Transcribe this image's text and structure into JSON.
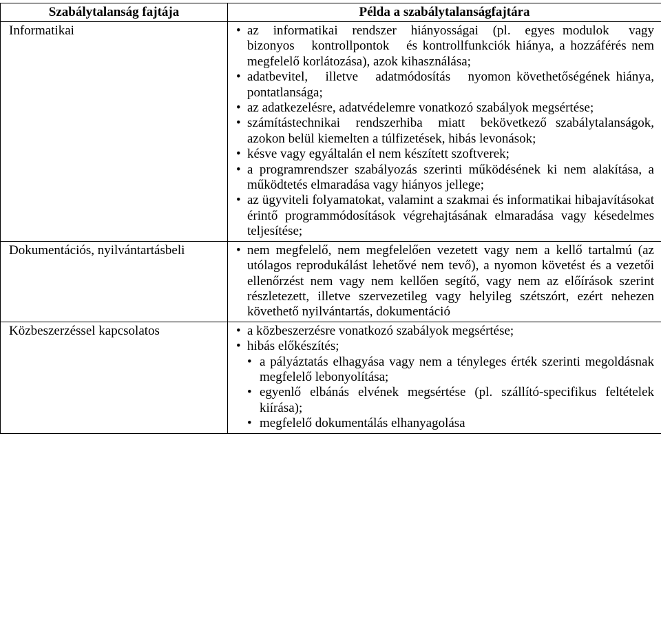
{
  "header": {
    "col1": "Szabálytalanság fajtája",
    "col2": "Példa a szabálytalanságfajtára"
  },
  "rows": [
    {
      "label": "Informatikai",
      "items": [
        "az informatikai rendszer hiányosságai (pl. egyes modulok vagy bizonyos kontrollpontok és kontrollfunkciók hiánya, a hozzáférés nem megfelelő korlátozása), azok kihasználása;",
        "adatbevitel, illetve adatmódosítás nyomon követhetőségének hiánya, pontatlansága;",
        "az adatkezelésre, adatvédelemre vonatkozó szabályok megsértése;",
        "számítástechnikai rendszerhiba miatt bekövetkező szabálytalanságok, azokon belül kiemelten a túlfizetések, hibás levonások;",
        "késve vagy egyáltalán el nem készített szoftverek;",
        "a programrendszer szabályozás szerinti működésének ki nem alakítása, a működtetés elmaradása vagy hiányos jellege;",
        "az ügyviteli folyamatokat, valamint a szakmai és informatikai hibajavításokat érintő programmódosítások végrehajtásának elmaradása vagy késedelmes teljesítése;"
      ]
    },
    {
      "label": "Dokumentációs, nyilvántartásbeli",
      "items": [
        "nem megfelelő, nem megfelelően vezetett vagy nem a kellő tartalmú (az utólagos reprodukálást lehetővé nem tevő), a nyomon követést és a vezetői ellenőrzést nem vagy nem kellően segítő, vagy nem az előírások szerint részletezett, illetve szervezetileg vagy helyileg szétszórt, ezért nehezen követhető nyilvántartás, dokumentáció"
      ]
    },
    {
      "label": "Közbeszerzéssel kapcsolatos",
      "items": [
        "a közbeszerzésre vonatkozó szabályok megsértése;",
        "hibás előkészítés;",
        "a pályáztatás elhagyása vagy nem a tényleges érték szerinti megoldásnak megfelelő lebonyolítása;",
        "egyenlő elbánás elvének megsértése (pl. szállító-specifikus feltételek kiírása);",
        "megfelelő dokumentálás elhanyagolása"
      ]
    }
  ]
}
